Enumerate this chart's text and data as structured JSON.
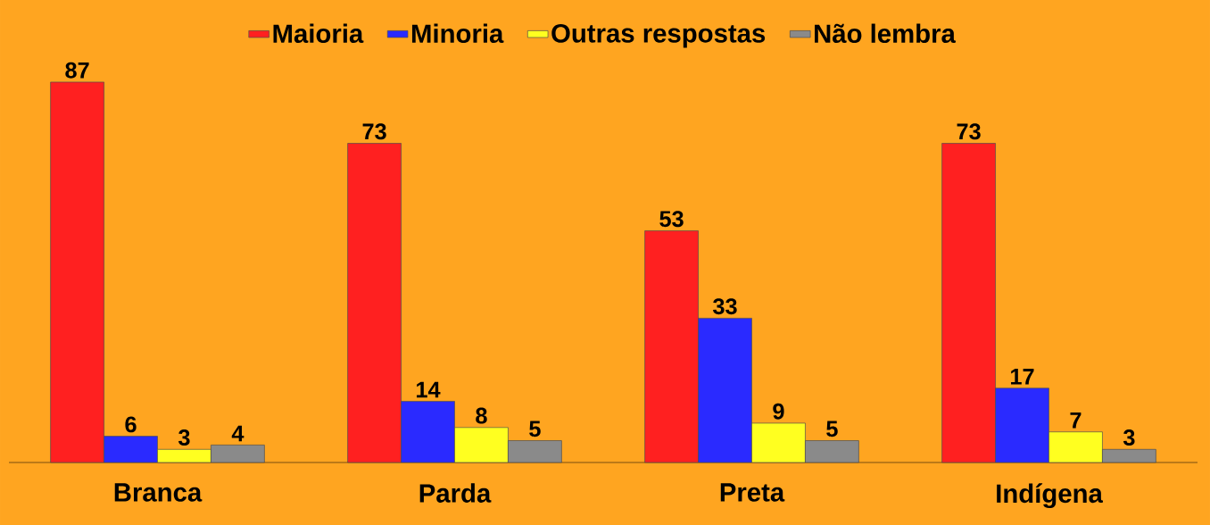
{
  "chart_data": {
    "type": "bar",
    "categories": [
      "Branca",
      "Parda",
      "Preta",
      "Indígena"
    ],
    "series": [
      {
        "name": "Maioria",
        "color": "#ff2020",
        "values": [
          87,
          73,
          53,
          73
        ]
      },
      {
        "name": "Minoria",
        "color": "#2a2aff",
        "values": [
          6,
          14,
          33,
          17
        ]
      },
      {
        "name": "Outras respostas",
        "color": "#ffff20",
        "values": [
          3,
          8,
          9,
          7
        ]
      },
      {
        "name": "Não lembra",
        "color": "#8a8a8a",
        "values": [
          4,
          5,
          5,
          3
        ]
      }
    ],
    "data_labels": true,
    "legend": "top"
  }
}
